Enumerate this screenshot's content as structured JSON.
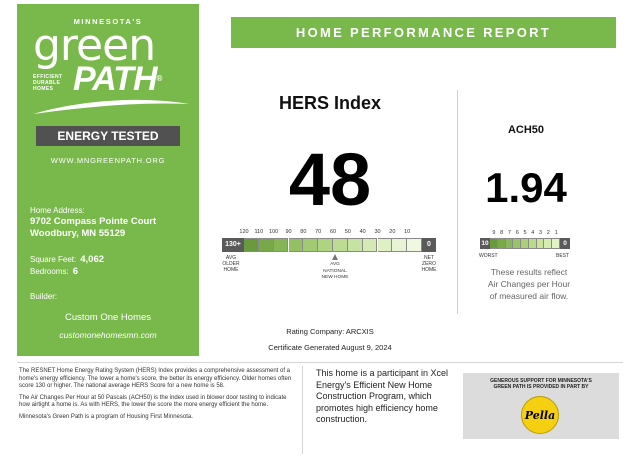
{
  "brand": {
    "state": "MINNESOTA'S",
    "logo_line1": "green",
    "logo_line2": "PATH",
    "logo_tagline": [
      "EFFICIENT",
      "DURABLE",
      "HOMES"
    ],
    "badge": "ENERGY TESTED",
    "website": "WWW.MNGREENPATH.ORG",
    "color_green": "#79b84a"
  },
  "home": {
    "address_label": "Home Address:",
    "address_line1": "9702 Compass Pointe Court",
    "address_line2": "Woodbury, MN 55129",
    "sqft_label": "Square Feet:",
    "sqft_value": "4,062",
    "bedrooms_label": "Bedrooms:",
    "bedrooms_value": "6",
    "builder_label": "Builder:",
    "builder_name": "Custom One Homes",
    "builder_site": "customonehomesmn.com"
  },
  "header": {
    "title": "HOME PERFORMANCE REPORT"
  },
  "hers": {
    "title": "HERS Index",
    "score": "48",
    "score_value": 48,
    "scale_ticks": [
      "120",
      "110",
      "100",
      "90",
      "80",
      "70",
      "60",
      "50",
      "40",
      "30",
      "20",
      "10"
    ],
    "left_cap": "130+",
    "right_cap": "0",
    "left_label": [
      "AVG",
      "OLDER",
      "HOME"
    ],
    "right_label": [
      "NET",
      "ZERO",
      "HOME"
    ],
    "marker_value": 58,
    "marker_label": [
      "AVG",
      "NATIONAL",
      "NEW HOME"
    ],
    "rating_company": "Rating Company: ARCXIS",
    "certificate": "Certificate Generated August 9, 2024"
  },
  "ach": {
    "title": "ACH50",
    "score": "1.94",
    "scale_ticks": [
      "9",
      "8",
      "7",
      "6",
      "5",
      "4",
      "3",
      "2",
      "1"
    ],
    "left_cap": "10",
    "right_cap": "0",
    "worst_label": "WORST",
    "best_label": "BEST",
    "note": [
      "These results reflect",
      "Air Changes per Hour",
      "of measured air flow."
    ]
  },
  "footer": {
    "para1": "The RESNET Home Energy Rating System (HERS) Index provides a comprehensive assessment of a home's energy efficiency. The lower a home's score, the better its energy efficiency. Older homes often score 130 or higher. The national average HERS Score for a new home is 58.",
    "para2": "The Air Changes Per Hour at 50 Pascals (ACH50) is the index used in blower door testing to indicate how airtight a home is. As with HERS, the lower the score the more energy efficient the home.",
    "para3": "Minnesota's Green Path is a program of Housing First Minnesota.",
    "xcel": "This home is a participant in Xcel Energy's Efficient New Home Construction Program, which promotes high efficiency home construction.",
    "sponsor_text": [
      "GENEROUS SUPPORT FOR MINNESOTA'S",
      "GREEN PATH IS PROVIDED IN PART BY"
    ],
    "sponsor_logo": "Pella"
  }
}
